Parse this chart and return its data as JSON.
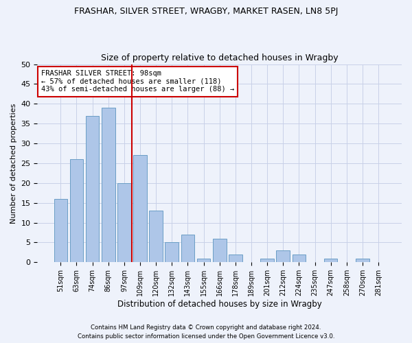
{
  "title": "FRASHAR, SILVER STREET, WRAGBY, MARKET RASEN, LN8 5PJ",
  "subtitle": "Size of property relative to detached houses in Wragby",
  "xlabel": "Distribution of detached houses by size in Wragby",
  "ylabel": "Number of detached properties",
  "bar_labels": [
    "51sqm",
    "63sqm",
    "74sqm",
    "86sqm",
    "97sqm",
    "109sqm",
    "120sqm",
    "132sqm",
    "143sqm",
    "155sqm",
    "166sqm",
    "178sqm",
    "189sqm",
    "201sqm",
    "212sqm",
    "224sqm",
    "235sqm",
    "247sqm",
    "258sqm",
    "270sqm",
    "281sqm"
  ],
  "bar_values": [
    16,
    26,
    37,
    39,
    20,
    27,
    13,
    5,
    7,
    1,
    6,
    2,
    0,
    1,
    3,
    2,
    0,
    1,
    0,
    1,
    0
  ],
  "bar_color": "#aec6e8",
  "bar_edge_color": "#6a9ec5",
  "vline_x": 4.5,
  "vline_color": "#cc0000",
  "annotation_line1": "FRASHAR SILVER STREET: 98sqm",
  "annotation_line2": "← 57% of detached houses are smaller (118)",
  "annotation_line3": "43% of semi-detached houses are larger (88) →",
  "annotation_box_color": "#ffffff",
  "annotation_box_edge_color": "#cc0000",
  "ylim": [
    0,
    50
  ],
  "yticks": [
    0,
    5,
    10,
    15,
    20,
    25,
    30,
    35,
    40,
    45,
    50
  ],
  "footer1": "Contains HM Land Registry data © Crown copyright and database right 2024.",
  "footer2": "Contains public sector information licensed under the Open Government Licence v3.0.",
  "bg_color": "#eef2fb",
  "grid_color": "#c8d0e8"
}
